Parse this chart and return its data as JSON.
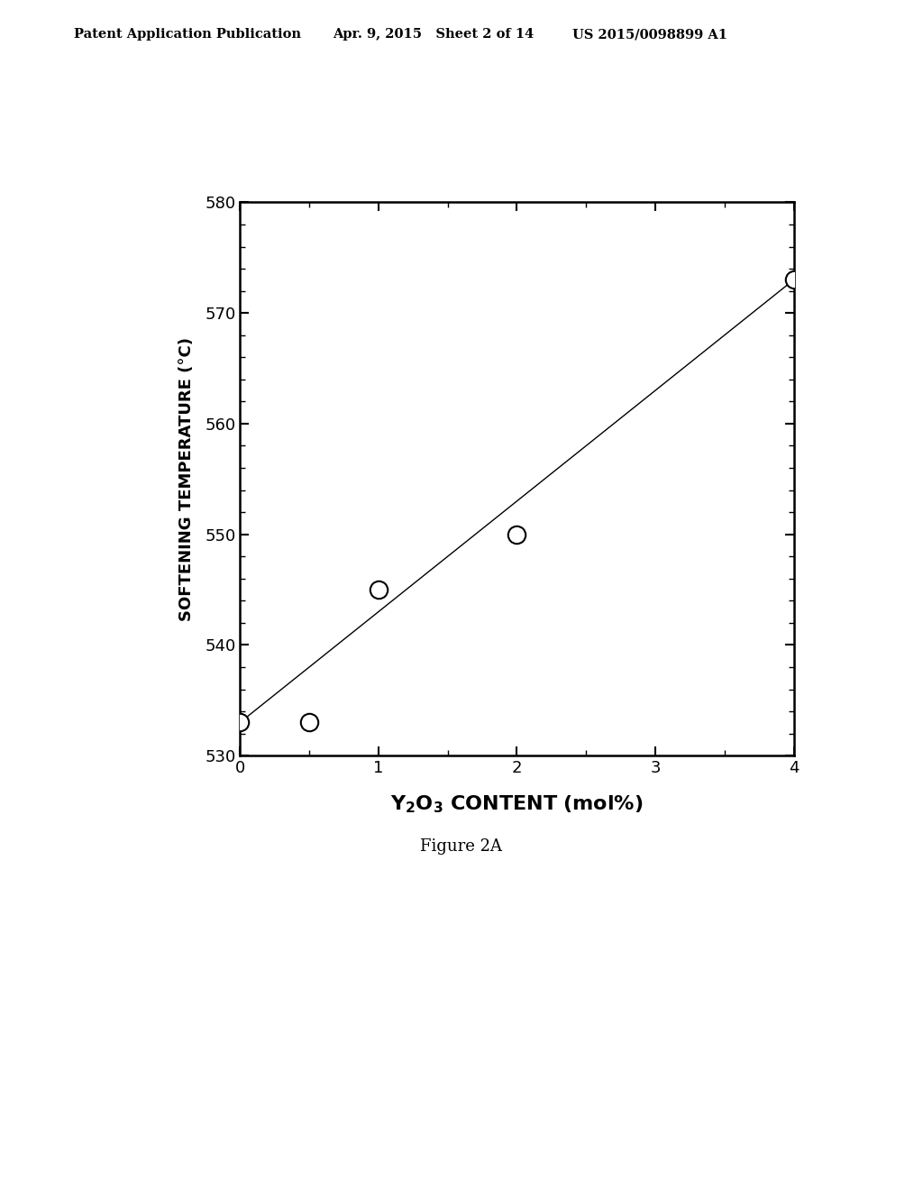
{
  "data_x": [
    0,
    0.5,
    1,
    2,
    4
  ],
  "data_y": [
    533,
    533,
    545,
    550,
    573
  ],
  "line_x": [
    0,
    4
  ],
  "line_y": [
    533,
    573
  ],
  "xlim": [
    0,
    4
  ],
  "ylim": [
    530,
    580
  ],
  "xticks": [
    0,
    1,
    2,
    3,
    4
  ],
  "yticks": [
    530,
    540,
    550,
    560,
    570,
    580
  ],
  "ylabel": "SOFTENING TEMPERATURE (°C)",
  "figure_caption": "Figure 2A",
  "header_left": "Patent Application Publication",
  "header_mid": "Apr. 9, 2015   Sheet 2 of 14",
  "header_right": "US 2015/0098899 A1",
  "marker_size": 14,
  "line_color": "#000000",
  "marker_facecolor": "white",
  "marker_edgecolor": "#000000",
  "marker_linewidth": 1.5,
  "background_color": "#ffffff"
}
